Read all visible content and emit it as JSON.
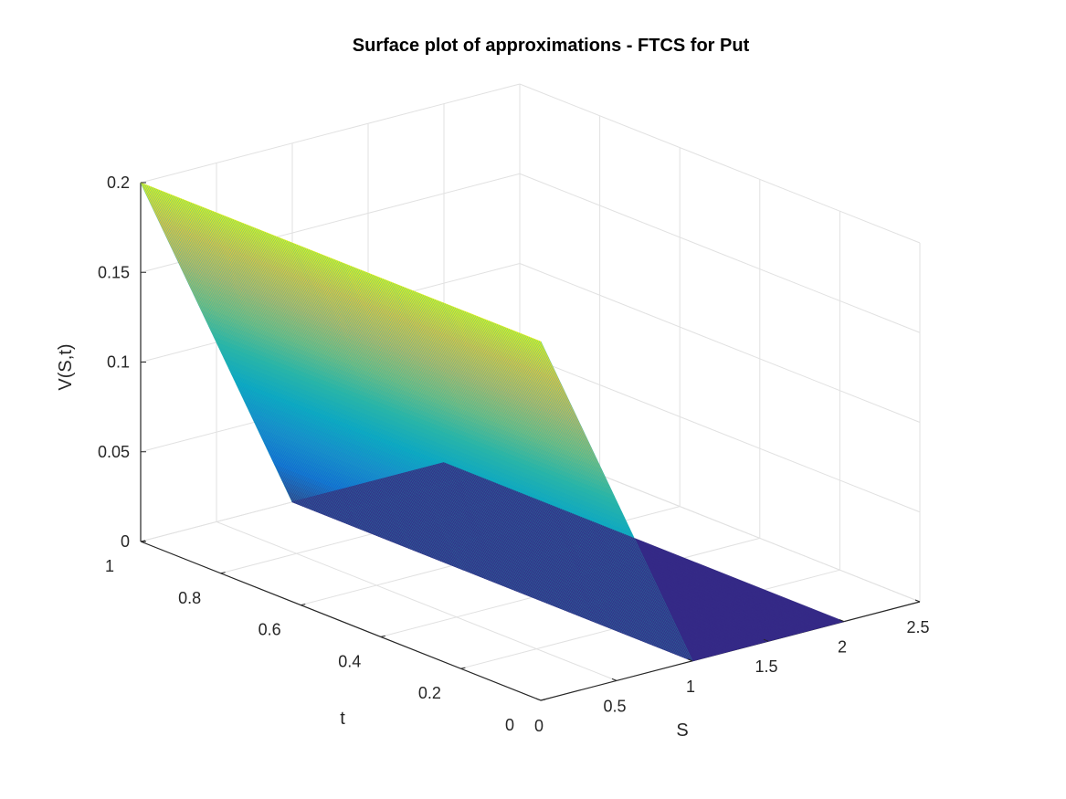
{
  "chart_data": {
    "type": "surface",
    "title": "Surface plot of approximations - FTCS for Put",
    "xlabel": "S",
    "ylabel": "t",
    "zlabel": "V(S,t)",
    "xlim": [
      0,
      2.5
    ],
    "ylim": [
      0,
      1
    ],
    "zlim": [
      0,
      0.2
    ],
    "xticks": [
      "0",
      "0.5",
      "1",
      "1.5",
      "2",
      "2.5"
    ],
    "yticks": [
      "0",
      "0.2",
      "0.4",
      "0.6",
      "0.8",
      "1"
    ],
    "zticks": [
      "0",
      "0.05",
      "0.1",
      "0.15",
      "0.2"
    ],
    "grid": true,
    "colormap": "parula",
    "colormap_colors": [
      "#352a87",
      "#0f5cdd",
      "#1481d6",
      "#06a4ca",
      "#2eb7a4",
      "#87bf77",
      "#d1bb59",
      "#fec832",
      "#f9fb0e"
    ],
    "surface": {
      "strike": 1,
      "s_max": 2,
      "t_max": 1,
      "profile_S": [
        0,
        1,
        2
      ],
      "profile_V": [
        0.2,
        0,
        0
      ],
      "mesh_lines_S": 120,
      "mesh_lines_t": 200
    }
  }
}
